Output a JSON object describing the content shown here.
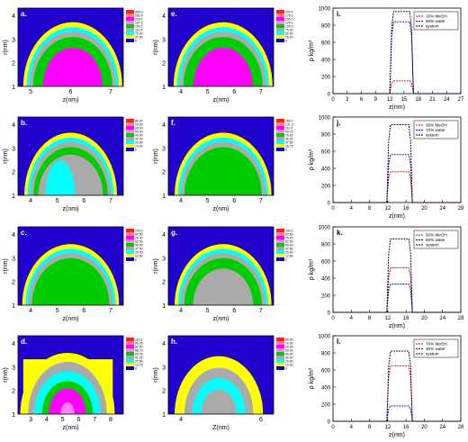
{
  "contour_panels": [
    {
      "panel": "a.",
      "xlabel": "z(nm)",
      "ylabel": "r(nm)",
      "xticks": [
        "5",
        "6",
        "7"
      ],
      "yticks": [
        "1",
        "2",
        "3",
        "4"
      ],
      "legend": [
        "300.0",
        "262.5",
        "225.0",
        "187.5",
        "150.0",
        "112.5",
        "75.00",
        "37.50",
        "0"
      ]
    },
    {
      "panel": "b.",
      "xlabel": "z(nm)",
      "ylabel": "r(nm)",
      "xticks": [
        "4",
        "5",
        "6",
        "7"
      ],
      "yticks": [
        "1",
        "2",
        "3",
        "4"
      ],
      "legend": [
        "80.00",
        "70.00",
        "60.00",
        "50.00",
        "40.00",
        "30.00",
        "20.00",
        "10.00",
        "0"
      ]
    },
    {
      "panel": "c.",
      "xlabel": "z(nm)",
      "ylabel": "r(nm)",
      "xticks": [
        "4",
        "5",
        "6",
        "7"
      ],
      "yticks": [
        "1",
        "2",
        "3",
        "4"
      ],
      "legend": [
        "100.0",
        "87.50",
        "75.00",
        "62.50",
        "50.00",
        "37.50",
        "25.00",
        "12.50",
        "0"
      ]
    },
    {
      "panel": "d.",
      "xlabel": "z(nm)",
      "ylabel": "r(nm)",
      "xticks": [
        "3",
        "4",
        "5",
        "6",
        "7",
        "8"
      ],
      "yticks": [
        "1",
        "2",
        "3",
        "4"
      ],
      "legend": [
        "110.0",
        "96.25",
        "82.50",
        "68.75",
        "55.00",
        "41.25",
        "27.50",
        "13.75",
        "0"
      ]
    },
    {
      "panel": "e.",
      "xlabel": "z(nm)",
      "ylabel": "r(nm)",
      "xticks": [
        "4",
        "5",
        "6",
        "7"
      ],
      "yticks": [
        "1",
        "2",
        "3",
        "4"
      ],
      "legend": [
        "200.0",
        "175.0",
        "150.0",
        "125.0",
        "100.0",
        "75.00",
        "50.00",
        "25.00",
        "0"
      ]
    },
    {
      "panel": "f.",
      "xlabel": "z(nm)",
      "ylabel": "r(nm)",
      "xticks": [
        "4",
        "5",
        "6",
        "7"
      ],
      "yticks": [
        "1",
        "2",
        "3",
        "4"
      ],
      "legend": [
        "150.0",
        "131.3",
        "112.5",
        "93.75",
        "75.00",
        "56.25",
        "37.50",
        "18.75",
        "0"
      ]
    },
    {
      "panel": "g.",
      "xlabel": "z(nm)",
      "ylabel": "r(nm)",
      "xticks": [
        "4",
        "5",
        "6",
        "7"
      ],
      "yticks": [
        "1",
        "2",
        "3",
        "4"
      ],
      "legend": [
        "100.0",
        "87.50",
        "75.00",
        "62.50",
        "50.00",
        "37.50",
        "25.00",
        "12.50",
        "0"
      ]
    },
    {
      "panel": "h.",
      "xlabel": "Z(nm)",
      "ylabel": "r(nm)",
      "xticks": [
        "4",
        "6"
      ],
      "yticks": [
        "1",
        "2",
        "3",
        "4"
      ],
      "legend": [
        "80.00",
        "70.00",
        "60.00",
        "50.00",
        "40.00",
        "30.00",
        "20.00",
        "10.00",
        "0"
      ]
    }
  ],
  "level_colors": [
    "#ff1f1f",
    "#ff7f7f",
    "#ff00ff",
    "#ff7fff",
    "#00cc00",
    "#aaaaaa",
    "#00ffff",
    "#ffff00",
    "#1000cc"
  ],
  "contour_bg": "#1f00cc",
  "chart_data": [
    {
      "type": "line",
      "panel": "i.",
      "xlabel": "z(nm)",
      "ylabel": "ρ kg/m³",
      "xlim": [
        0,
        27
      ],
      "ylim": [
        0,
        1000
      ],
      "xticks": [
        "0",
        "3",
        "6",
        "9",
        "12",
        "15",
        "18",
        "21",
        "24",
        "27"
      ],
      "yticks": [
        "0",
        "200",
        "400",
        "600",
        "800",
        "1000"
      ],
      "legend_position": "top-right",
      "series": [
        {
          "name": "10% MeOH",
          "color": "#cc0000",
          "values": 150
        },
        {
          "name": "90% water",
          "color": "#0000cc",
          "values": 840
        },
        {
          "name": "system",
          "color": "#000000",
          "values": 960
        }
      ]
    },
    {
      "type": "line",
      "panel": "j.",
      "xlabel": "z(nm)",
      "ylabel": "ρ kg/m³",
      "xlim": [
        0,
        28
      ],
      "ylim": [
        0,
        1000
      ],
      "xticks": [
        "0",
        "4",
        "8",
        "12",
        "16",
        "20",
        "24",
        "28"
      ],
      "yticks": [
        "0",
        "200",
        "400",
        "600",
        "800",
        "1000"
      ],
      "legend_position": "top-right",
      "series": [
        {
          "name": "30% MeOH",
          "color": "#cc0000",
          "values": 360
        },
        {
          "name": "70% water",
          "color": "#0000cc",
          "values": 560
        },
        {
          "name": "system",
          "color": "#000000",
          "values": 910
        }
      ]
    },
    {
      "type": "line",
      "panel": "k.",
      "xlabel": "z(nm)",
      "ylabel": "ρ kg/m³",
      "xlim": [
        0,
        28
      ],
      "ylim": [
        0,
        1000
      ],
      "xticks": [
        "0",
        "4",
        "8",
        "12",
        "16",
        "20",
        "24",
        "28"
      ],
      "yticks": [
        "0",
        "200",
        "400",
        "600",
        "800",
        "1000"
      ],
      "legend_position": "top-right",
      "series": [
        {
          "name": "50% MeOH",
          "color": "#cc0000",
          "values": 520
        },
        {
          "name": "50% water",
          "color": "#0000cc",
          "values": 330
        },
        {
          "name": "system",
          "color": "#000000",
          "values": 860
        }
      ]
    },
    {
      "type": "line",
      "panel": "l.",
      "xlabel": "z(nm)",
      "ylabel": "ρ kg/m³",
      "xlim": [
        0,
        28
      ],
      "ylim": [
        0,
        1000
      ],
      "xticks": [
        "0",
        "4",
        "8",
        "12",
        "16",
        "20",
        "24",
        "28"
      ],
      "yticks": [
        "0",
        "200",
        "400",
        "600",
        "800",
        "1000"
      ],
      "legend_position": "top-right",
      "series": [
        {
          "name": "70% MeOH",
          "color": "#cc0000",
          "values": 650
        },
        {
          "name": "30% water",
          "color": "#0000cc",
          "values": 180
        },
        {
          "name": "system",
          "color": "#000000",
          "values": 820
        }
      ]
    }
  ]
}
